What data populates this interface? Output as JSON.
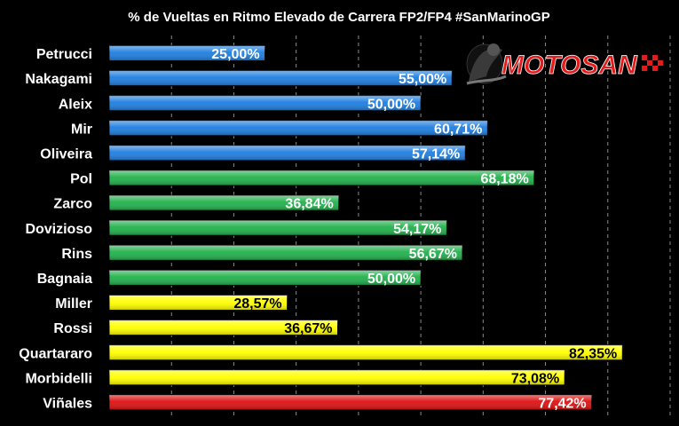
{
  "chart_data": {
    "type": "bar",
    "orientation": "horizontal",
    "title": "% de Vueltas en Ritmo Elevado de Carrera FP2/FP4 #SanMarinoGP",
    "categories": [
      "Petrucci",
      "Nakagami",
      "Aleix",
      "Mir",
      "Oliveira",
      "Pol",
      "Zarco",
      "Dovizioso",
      "Rins",
      "Bagnaia",
      "Miller",
      "Rossi",
      "Quartararo",
      "Morbidelli",
      "Viñales"
    ],
    "values": [
      25.0,
      55.0,
      50.0,
      60.71,
      57.14,
      68.18,
      36.84,
      54.17,
      56.67,
      50.0,
      28.57,
      36.67,
      82.35,
      73.08,
      77.42
    ],
    "labels": [
      "25,00%",
      "55,00%",
      "50,00%",
      "60,71%",
      "57,14%",
      "68,18%",
      "36,84%",
      "54,17%",
      "56,67%",
      "50,00%",
      "28,57%",
      "36,67%",
      "82,35%",
      "73,08%",
      "77,42%"
    ],
    "bar_colors": [
      "#1e7ee0",
      "#1e7ee0",
      "#1e7ee0",
      "#1e7ee0",
      "#1e7ee0",
      "#22b14c",
      "#22b14c",
      "#22b14c",
      "#22b14c",
      "#22b14c",
      "#ffff00",
      "#ffff00",
      "#ffff00",
      "#ffff00",
      "#dd1111"
    ],
    "label_colors": [
      "#ffffff",
      "#ffffff",
      "#ffffff",
      "#ffffff",
      "#ffffff",
      "#ffffff",
      "#ffffff",
      "#ffffff",
      "#ffffff",
      "#ffffff",
      "#000000",
      "#000000",
      "#000000",
      "#000000",
      "#ffffff"
    ],
    "xlim": [
      0,
      90
    ],
    "grid": true,
    "legend": "none"
  },
  "logo": {
    "text": "MOTOSAN",
    "color": "#e31b1b"
  }
}
